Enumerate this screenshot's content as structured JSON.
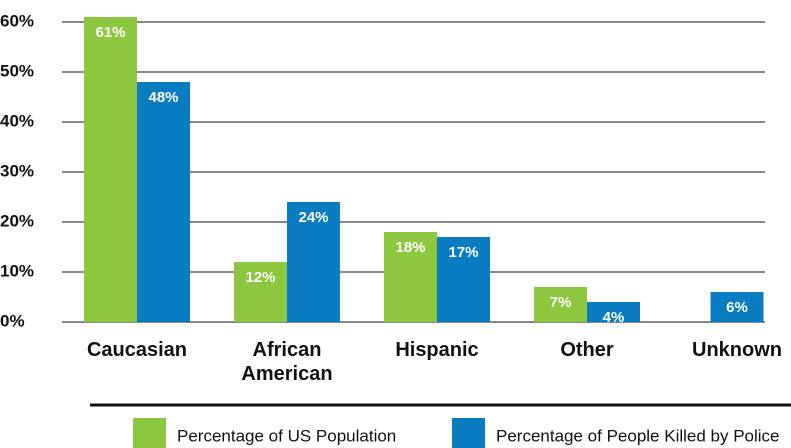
{
  "chart_data": {
    "type": "bar",
    "categories": [
      "Caucasian",
      "African American",
      "Hispanic",
      "Other",
      "Unknown"
    ],
    "series": [
      {
        "name": "Percentage of US Population",
        "color": "#8dc63f",
        "values": [
          61,
          12,
          18,
          7,
          null
        ],
        "value_labels": [
          "61%",
          "12%",
          "18%",
          "7%",
          null
        ]
      },
      {
        "name": "Percentage of People Killed by Police",
        "color": "#0a7cc1",
        "values": [
          48,
          24,
          17,
          4,
          6
        ],
        "value_labels": [
          "48%",
          "24%",
          "17%",
          "4%",
          "6%"
        ]
      }
    ],
    "ylim": [
      0,
      60
    ],
    "yticks": [
      {
        "value": 0,
        "label": "0%"
      },
      {
        "value": 10,
        "label": "10%"
      },
      {
        "value": 20,
        "label": "20%"
      },
      {
        "value": 30,
        "label": "30%"
      },
      {
        "value": 40,
        "label": "40%"
      },
      {
        "value": 50,
        "label": "50%"
      },
      {
        "value": 60,
        "label": "60%"
      }
    ],
    "grid": true,
    "legend": "bottom"
  }
}
